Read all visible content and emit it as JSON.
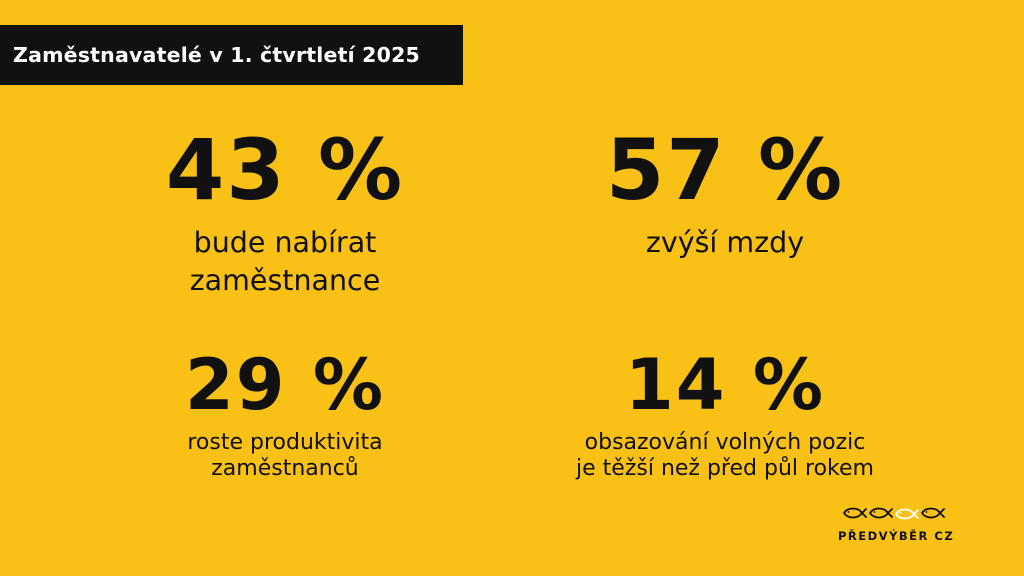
{
  "title": "Zaměstnavatelé v 1. čtvrtletí 2025",
  "stats": [
    {
      "value": "43 %",
      "label_lines": [
        "bude nabírat",
        "zaměstnance"
      ]
    },
    {
      "value": "57 %",
      "label_lines": [
        "zvýší mzdy"
      ]
    },
    {
      "value": "29 %",
      "label_lines": [
        "roste produktivita",
        "zaměstnanců"
      ]
    },
    {
      "value": "14 %",
      "label_lines": [
        "obsazování volných pozic",
        "je těžší než před půl rokem"
      ]
    }
  ],
  "logo": {
    "text": "PŘEDVÝBĚR CZ",
    "icon": "fish-icons"
  },
  "colors": {
    "background": "#f9c116",
    "text": "#111111",
    "title_bar": "#111111",
    "title_text": "#ffffff",
    "logo_highlight": "#ffffff"
  }
}
